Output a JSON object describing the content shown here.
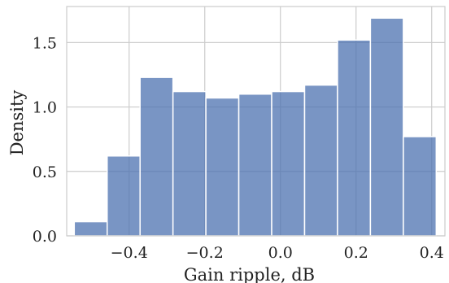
{
  "chart_data": {
    "type": "bar",
    "subtype": "histogram",
    "xlabel": "Gain ripple, dB",
    "ylabel": "Density",
    "xlim": [
      -0.565,
      0.435
    ],
    "ylim": [
      0,
      1.78
    ],
    "xticks": [
      -0.4,
      -0.2,
      0.0,
      0.2,
      0.4
    ],
    "xtick_labels": [
      "−0.4",
      "−0.2",
      "0.0",
      "0.2",
      "0.4"
    ],
    "yticks": [
      0.0,
      0.5,
      1.0,
      1.5
    ],
    "ytick_labels": [
      "0.0",
      "0.5",
      "1.0",
      "1.5"
    ],
    "grid": true,
    "bar_color": "#4c72b0",
    "bins": [
      {
        "x0": -0.545,
        "x1": -0.458,
        "value": 0.11
      },
      {
        "x0": -0.458,
        "x1": -0.371,
        "value": 0.62
      },
      {
        "x0": -0.371,
        "x1": -0.284,
        "value": 1.23
      },
      {
        "x0": -0.284,
        "x1": -0.197,
        "value": 1.12
      },
      {
        "x0": -0.197,
        "x1": -0.11,
        "value": 1.07
      },
      {
        "x0": -0.11,
        "x1": -0.023,
        "value": 1.1
      },
      {
        "x0": -0.023,
        "x1": 0.064,
        "value": 1.12
      },
      {
        "x0": 0.064,
        "x1": 0.151,
        "value": 1.17
      },
      {
        "x0": 0.151,
        "x1": 0.238,
        "value": 1.52
      },
      {
        "x0": 0.238,
        "x1": 0.325,
        "value": 1.69
      },
      {
        "x0": 0.325,
        "x1": 0.412,
        "value": 0.77
      }
    ]
  }
}
